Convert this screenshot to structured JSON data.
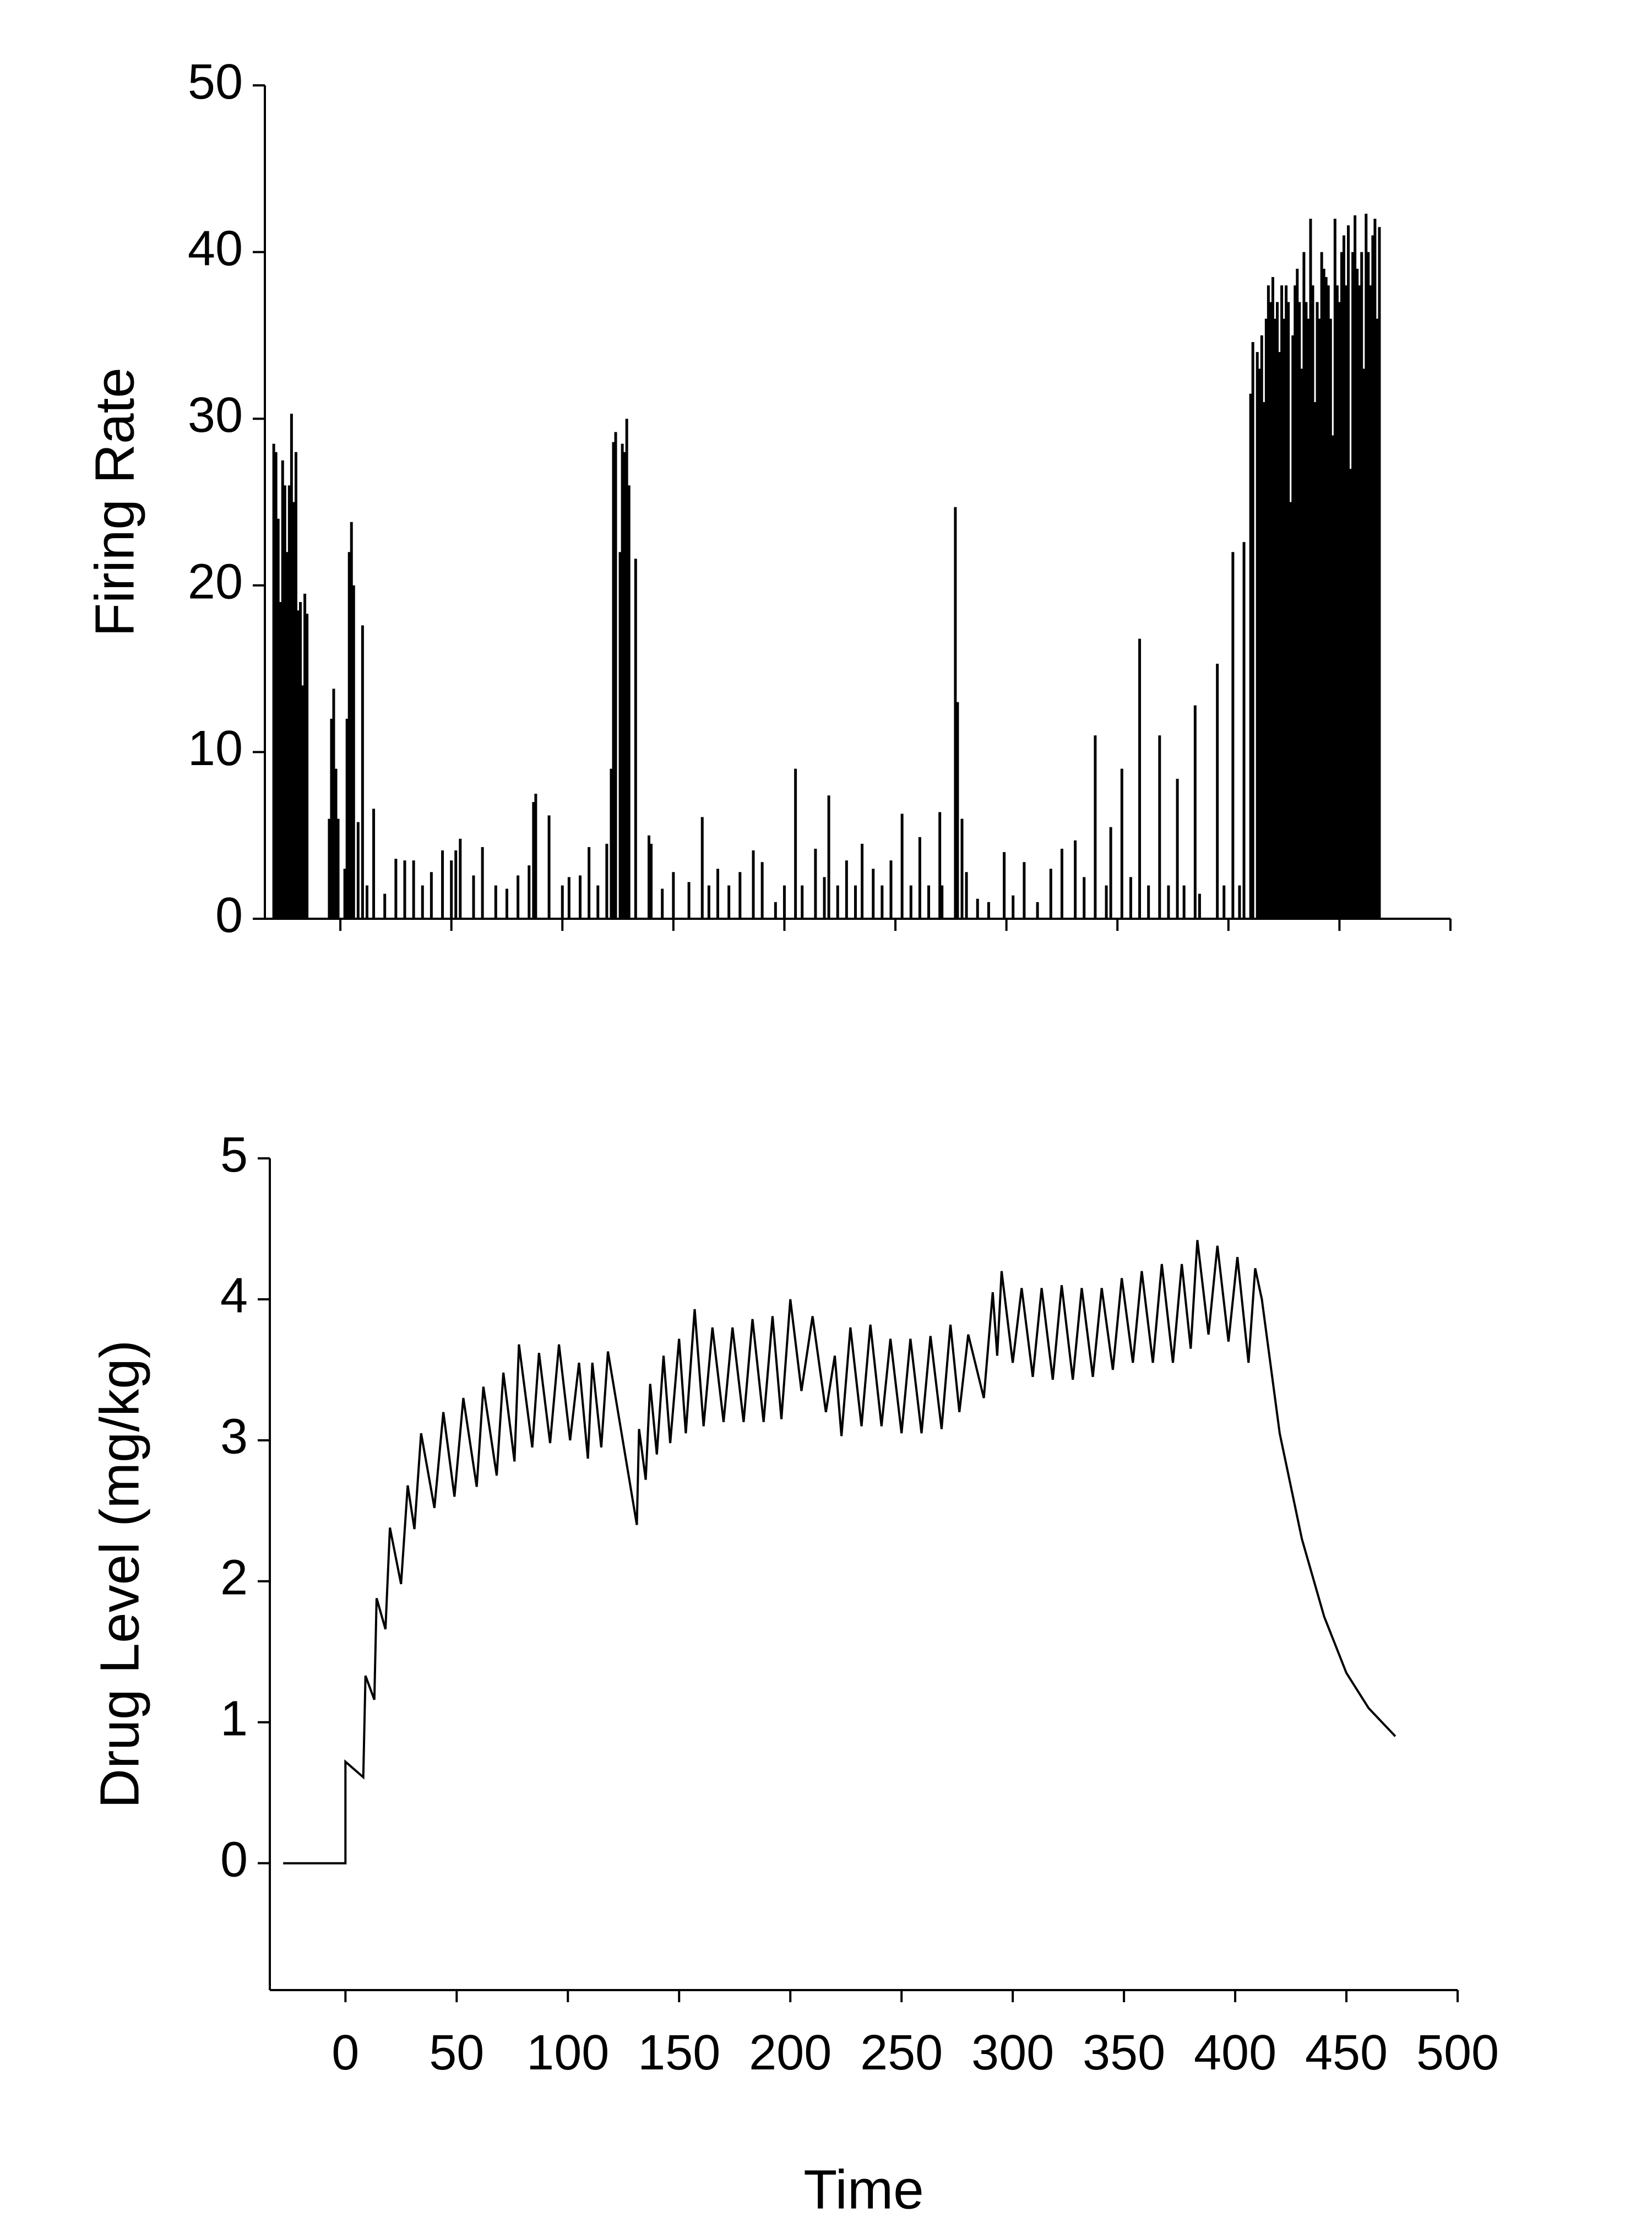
{
  "chart_data": [
    {
      "type": "stem",
      "ylabel": "Firing Rate",
      "color": "#000000",
      "x": [
        -30,
        -29,
        -28,
        -27,
        -26,
        -25,
        -24,
        -23,
        -22,
        -21,
        -20,
        -19,
        -18,
        -17,
        -16,
        -15,
        -5,
        -4,
        -3,
        -2,
        -1,
        2,
        3,
        4,
        5,
        6,
        8,
        10,
        12,
        15,
        20,
        25,
        29,
        33,
        37,
        41,
        46,
        50,
        52,
        54,
        60,
        64,
        70,
        75,
        80,
        85,
        87,
        88,
        94,
        100,
        103,
        108,
        112,
        116,
        120,
        122,
        123,
        124,
        126,
        127,
        128,
        129,
        130,
        133,
        139,
        140,
        145,
        150,
        157,
        163,
        166,
        170,
        175,
        180,
        186,
        190,
        196,
        200,
        205,
        208,
        214,
        218,
        220,
        224,
        228,
        232,
        235,
        240,
        244,
        248,
        253,
        257,
        261,
        265,
        270,
        271,
        277,
        278,
        280,
        282,
        287,
        292,
        299,
        303,
        308,
        314,
        320,
        325,
        331,
        335,
        340,
        345,
        347,
        352,
        356,
        360,
        364,
        369,
        373,
        377,
        380,
        385,
        387,
        395,
        398,
        402,
        405,
        407,
        410,
        411,
        413,
        414,
        415,
        416,
        417,
        418,
        419,
        420,
        421,
        422,
        423,
        424,
        425,
        426,
        427,
        428,
        429,
        430,
        431,
        432,
        433,
        434,
        435,
        436,
        437,
        438,
        439,
        440,
        441,
        442,
        443,
        444,
        445,
        446,
        447,
        448,
        449,
        450,
        451,
        452,
        453,
        454,
        455,
        456,
        457,
        458,
        459,
        460,
        461,
        462,
        463,
        464,
        465,
        466,
        467,
        468
      ],
      "values": [
        28.5,
        28,
        24,
        19,
        27.5,
        26,
        22,
        26,
        30.3,
        25,
        28,
        18.5,
        19,
        14,
        19.5,
        18.3,
        6,
        12,
        13.8,
        9,
        6,
        3,
        12,
        22,
        23.8,
        20,
        5.8,
        17.6,
        2,
        6.6,
        1.5,
        3.6,
        3.5,
        3.5,
        2,
        2.8,
        4.1,
        3.5,
        4.1,
        4.8,
        2.6,
        4.3,
        2,
        1.8,
        2.6,
        3.2,
        7,
        7.5,
        6.2,
        2,
        2.5,
        2.6,
        4.3,
        2,
        4.5,
        9,
        28.6,
        29.2,
        22,
        28.5,
        28,
        30,
        26,
        21.6,
        5,
        4.5,
        1.8,
        2.8,
        2.2,
        6.1,
        2,
        3,
        2,
        2.8,
        4.1,
        3.4,
        1,
        2,
        9,
        2,
        4.2,
        2.5,
        7.4,
        2,
        3.5,
        2,
        4.5,
        3,
        2,
        3.5,
        6.3,
        2,
        4.9,
        2,
        6.4,
        2,
        24.7,
        13,
        6,
        2.8,
        1.2,
        1,
        4,
        1.4,
        3.4,
        1,
        3,
        4.2,
        4.7,
        2.5,
        11,
        2,
        5.5,
        9,
        2.5,
        16.8,
        2,
        11,
        2,
        8.4,
        2,
        12.8,
        1.5,
        15.3,
        2,
        22,
        2,
        22.6,
        31.5,
        34.6,
        34,
        33,
        35,
        31,
        36,
        38,
        37,
        38.5,
        36,
        37,
        34,
        38,
        36,
        38,
        37,
        25,
        35,
        38,
        39,
        37,
        33,
        40,
        37,
        36,
        42,
        38,
        31,
        37,
        36,
        40,
        39,
        38.5,
        38,
        36,
        29,
        42,
        38,
        37,
        40,
        41,
        38,
        41.6,
        27,
        40,
        42.2,
        39,
        38,
        40,
        33,
        42.3,
        40,
        38,
        41,
        42,
        36,
        41.5
      ],
      "xlim": [
        -34,
        500
      ],
      "xticks": [
        0,
        50,
        100,
        150,
        200,
        250,
        300,
        350,
        400,
        450,
        500
      ],
      "xtick_labels": false,
      "ylim": [
        0,
        50
      ],
      "yticks": [
        0,
        10,
        20,
        30,
        40,
        50
      ]
    },
    {
      "type": "line",
      "ylabel": "Drug Level (mg/kg)",
      "xlabel": "Time",
      "color": "#000000",
      "x": [
        -28,
        0,
        0,
        8,
        9,
        13,
        14,
        18,
        20,
        25,
        28,
        31,
        34,
        40,
        44,
        49,
        53,
        59,
        62,
        68,
        71,
        76,
        78,
        84,
        87,
        92,
        96,
        101,
        105,
        109,
        111,
        115,
        118,
        131,
        132,
        135,
        137,
        140,
        143,
        146,
        150,
        153,
        157,
        161,
        165,
        170,
        174,
        179,
        183,
        188,
        192,
        196,
        200,
        205,
        210,
        216,
        220,
        223,
        227,
        232,
        236,
        241,
        245,
        250,
        254,
        259,
        263,
        268,
        272,
        276,
        280,
        287,
        291,
        293,
        295,
        300,
        304,
        309,
        313,
        318,
        322,
        327,
        331,
        336,
        340,
        345,
        349,
        354,
        358,
        363,
        367,
        372,
        376,
        380,
        383,
        388,
        392,
        397,
        401,
        406,
        409,
        412,
        420,
        430,
        440,
        450,
        460,
        472
      ],
      "values": [
        0,
        0,
        0.72,
        0.61,
        1.33,
        1.16,
        1.88,
        1.66,
        2.38,
        1.98,
        2.68,
        2.37,
        3.05,
        2.52,
        3.2,
        2.6,
        3.3,
        2.67,
        3.38,
        2.75,
        3.48,
        2.85,
        3.68,
        2.95,
        3.62,
        2.98,
        3.68,
        3.0,
        3.55,
        2.87,
        3.55,
        2.95,
        3.63,
        2.4,
        3.08,
        2.72,
        3.4,
        2.9,
        3.6,
        2.98,
        3.72,
        3.05,
        3.93,
        3.1,
        3.8,
        3.13,
        3.8,
        3.13,
        3.86,
        3.13,
        3.88,
        3.15,
        4.0,
        3.35,
        3.88,
        3.2,
        3.6,
        3.03,
        3.8,
        3.1,
        3.82,
        3.1,
        3.72,
        3.05,
        3.72,
        3.05,
        3.74,
        3.08,
        3.82,
        3.2,
        3.75,
        3.3,
        4.05,
        3.6,
        4.2,
        3.55,
        4.08,
        3.45,
        4.08,
        3.43,
        4.1,
        3.43,
        4.08,
        3.45,
        4.08,
        3.5,
        4.15,
        3.55,
        4.2,
        3.55,
        4.25,
        3.55,
        4.25,
        3.65,
        4.42,
        3.75,
        4.38,
        3.7,
        4.3,
        3.55,
        4.22,
        4.0,
        3.05,
        2.3,
        1.75,
        1.35,
        1.1,
        0.9
      ],
      "xlim": [
        -34,
        500
      ],
      "xticks": [
        0,
        50,
        100,
        150,
        200,
        250,
        300,
        350,
        400,
        450,
        500
      ],
      "xtick_labels": true,
      "ylim": [
        -0.9,
        5
      ],
      "yticks": [
        0,
        1,
        2,
        3,
        4,
        5
      ]
    }
  ]
}
